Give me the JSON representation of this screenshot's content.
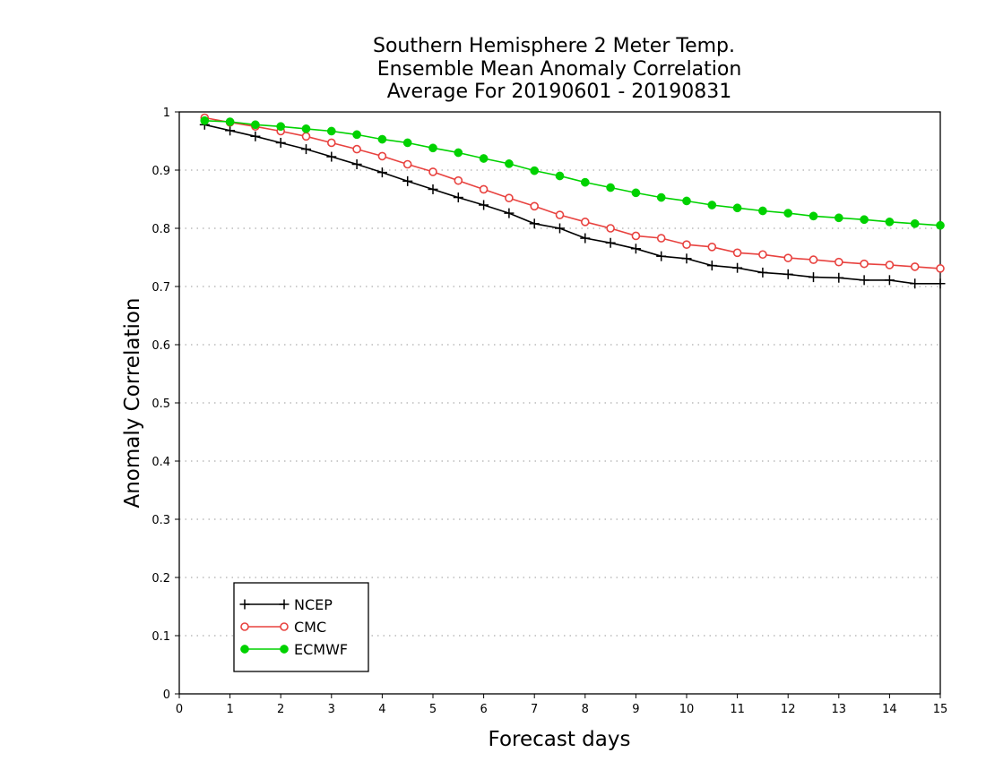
{
  "chart_data": {
    "type": "line",
    "title": [
      "Southern Hemisphere 2 Meter Temp.",
      "Ensemble Mean Anomaly Correlation",
      "Average For 20190601 - 20190831"
    ],
    "xlabel": "Forecast days",
    "ylabel": "Anomaly Correlation",
    "xlim": [
      0,
      15
    ],
    "ylim": [
      0,
      1
    ],
    "xticks": [
      "0",
      "1",
      "2",
      "3",
      "4",
      "5",
      "6",
      "7",
      "8",
      "9",
      "10",
      "11",
      "12",
      "13",
      "14",
      "15"
    ],
    "yticks": [
      "0",
      "0.1",
      "0.2",
      "0.3",
      "0.4",
      "0.5",
      "0.6",
      "0.7",
      "0.8",
      "0.9",
      "1"
    ],
    "grid": "horizontal dotted",
    "legend_position": "bottom-left",
    "x": [
      0.5,
      1,
      1.5,
      2,
      2.5,
      3,
      3.5,
      4,
      4.5,
      5,
      5.5,
      6,
      6.5,
      7,
      7.5,
      8,
      8.5,
      9,
      9.5,
      10,
      10.5,
      11,
      11.5,
      12,
      12.5,
      13,
      13.5,
      14,
      14.5,
      15
    ],
    "series": [
      {
        "name": "NCEP",
        "color": "#000000",
        "marker": "plus",
        "values": [
          0.978,
          0.968,
          0.958,
          0.947,
          0.936,
          0.923,
          0.91,
          0.896,
          0.881,
          0.867,
          0.853,
          0.84,
          0.826,
          0.808,
          0.8,
          0.783,
          0.775,
          0.765,
          0.752,
          0.748,
          0.736,
          0.732,
          0.724,
          0.721,
          0.716,
          0.715,
          0.711,
          0.711,
          0.705,
          0.705
        ]
      },
      {
        "name": "CMC",
        "color": "#e8423f",
        "marker": "open-circle",
        "values": [
          0.99,
          0.982,
          0.975,
          0.967,
          0.958,
          0.947,
          0.936,
          0.924,
          0.91,
          0.897,
          0.882,
          0.867,
          0.852,
          0.838,
          0.823,
          0.811,
          0.8,
          0.787,
          0.783,
          0.772,
          0.768,
          0.758,
          0.755,
          0.749,
          0.746,
          0.742,
          0.739,
          0.737,
          0.734,
          0.731
        ]
      },
      {
        "name": "ECMWF",
        "color": "#00d200",
        "marker": "filled-circle",
        "values": [
          0.985,
          0.983,
          0.978,
          0.975,
          0.971,
          0.967,
          0.961,
          0.953,
          0.947,
          0.938,
          0.93,
          0.92,
          0.911,
          0.899,
          0.89,
          0.879,
          0.87,
          0.861,
          0.853,
          0.847,
          0.84,
          0.835,
          0.83,
          0.826,
          0.821,
          0.818,
          0.815,
          0.811,
          0.808,
          0.805
        ]
      }
    ]
  }
}
